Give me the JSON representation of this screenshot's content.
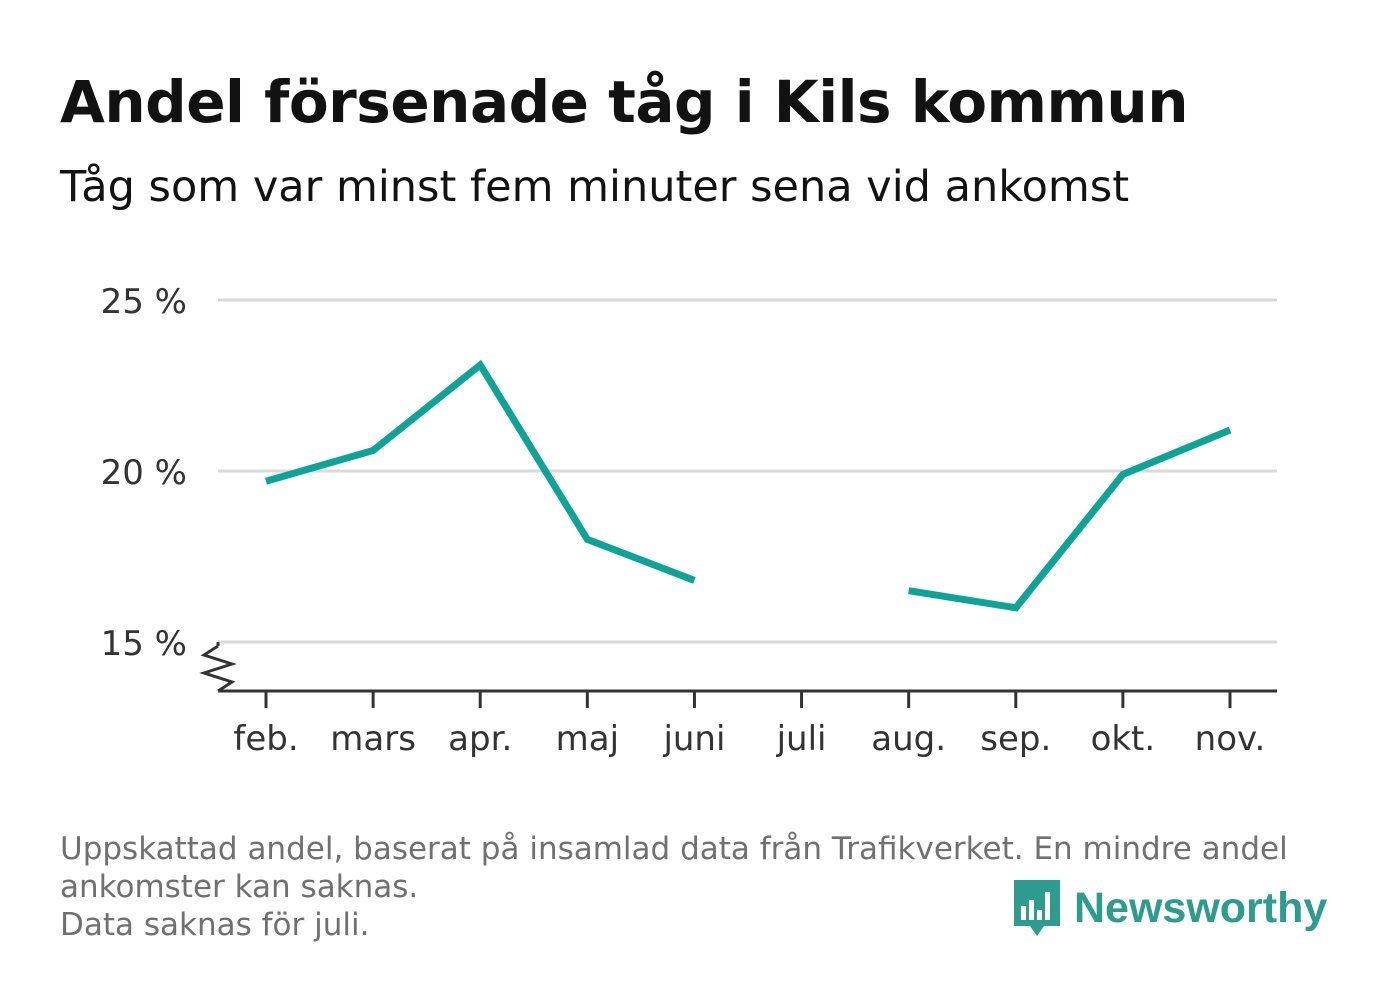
{
  "title": "Andel försenade tåg i Kils kommun",
  "subtitle": "Tåg som var minst fem minuter sena vid ankomst",
  "footnote": {
    "lines": [
      "Uppskattad andel, baserat på insamlad data från Trafikverket. En mindre andel",
      "ankomster kan saknas.",
      "Data saknas för juli."
    ]
  },
  "brand": {
    "name": "Newsworthy",
    "color": "#2d9b8e"
  },
  "colors": {
    "line": "#0fa397",
    "grid": "#d9d9d9",
    "axis": "#333333"
  },
  "chart_data": {
    "type": "line",
    "categories": [
      "feb.",
      "mars",
      "apr.",
      "maj",
      "juni",
      "juli",
      "aug.",
      "sep.",
      "okt.",
      "nov."
    ],
    "series": [
      {
        "values": [
          19.7,
          20.6,
          23.1,
          18.0,
          16.8,
          null,
          16.5,
          16.0,
          19.9,
          21.2
        ]
      }
    ],
    "ylim": [
      15,
      25
    ],
    "yticks": [
      15,
      20,
      25
    ],
    "ytick_labels": [
      "15 %",
      "20 %",
      "25 %"
    ],
    "y_axis_break": true,
    "grid": true,
    "legend": false
  }
}
